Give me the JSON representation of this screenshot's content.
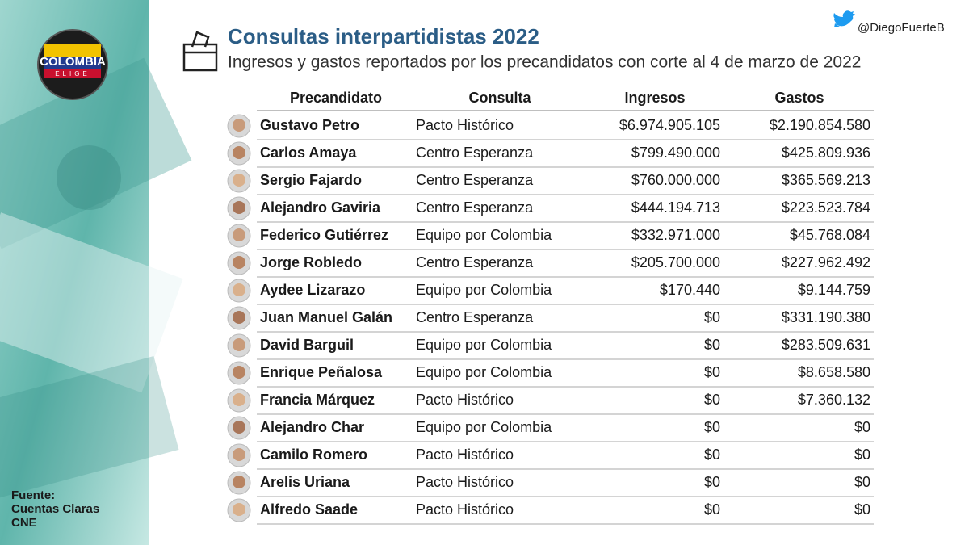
{
  "header": {
    "title": "Consultas interpartidistas 2022",
    "subtitle": "Ingresos y gastos reportados por los precandidatos con corte al 4 de marzo de 2022",
    "handle": "@DiegoFuerteB"
  },
  "logo": {
    "line1": "COLOMBIA",
    "line2": "ELIGE"
  },
  "source": [
    "Fuente:",
    "Cuentas Claras",
    "CNE"
  ],
  "table": {
    "columns": [
      "Precandidato",
      "Consulta",
      "Ingresos",
      "Gastos"
    ],
    "rows": [
      [
        "Gustavo Petro",
        "Pacto Histórico",
        "$6.974.905.105",
        "$2.190.854.580"
      ],
      [
        "Carlos Amaya",
        "Centro Esperanza",
        "$799.490.000",
        "$425.809.936"
      ],
      [
        "Sergio Fajardo",
        "Centro Esperanza",
        "$760.000.000",
        "$365.569.213"
      ],
      [
        "Alejandro Gaviria",
        "Centro Esperanza",
        "$444.194.713",
        "$223.523.784"
      ],
      [
        "Federico Gutiérrez",
        "Equipo por Colombia",
        "$332.971.000",
        "$45.768.084"
      ],
      [
        "Jorge Robledo",
        "Centro Esperanza",
        "$205.700.000",
        "$227.962.492"
      ],
      [
        "Aydee Lizarazo",
        "Equipo por Colombia",
        "$170.440",
        "$9.144.759"
      ],
      [
        "Juan Manuel Galán",
        "Centro Esperanza",
        "$0",
        "$331.190.380"
      ],
      [
        "David Barguil",
        "Equipo por Colombia",
        "$0",
        "$283.509.631"
      ],
      [
        "Enrique Peñalosa",
        "Equipo por Colombia",
        "$0",
        "$8.658.580"
      ],
      [
        "Francia Márquez",
        "Pacto Histórico",
        "$0",
        "$7.360.132"
      ],
      [
        "Alejandro Char",
        "Equipo por Colombia",
        "$0",
        "$0"
      ],
      [
        "Camilo Romero",
        "Pacto Histórico",
        "$0",
        "$0"
      ],
      [
        "Arelis Uriana",
        "Pacto Histórico",
        "$0",
        "$0"
      ],
      [
        "Alfredo Saade",
        "Pacto Histórico",
        "$0",
        "$0"
      ]
    ]
  }
}
